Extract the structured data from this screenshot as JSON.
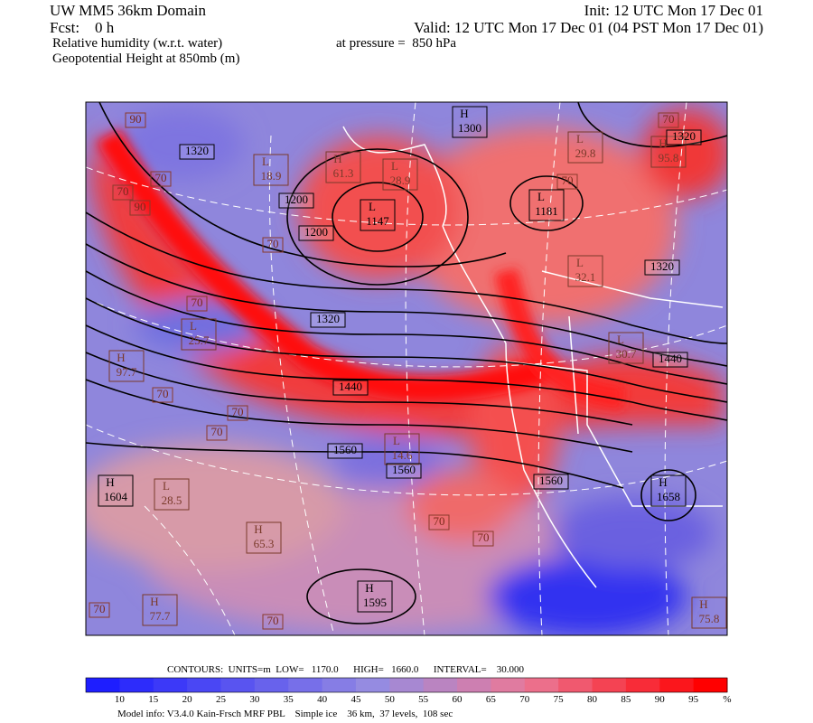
{
  "header": {
    "title": "UW MM5 36km Domain",
    "init": "Init: 12 UTC Mon 17 Dec 01",
    "fcst": "Fcst:    0 h",
    "valid": "Valid: 12 UTC Mon 17 Dec 01 (04 PST Mon 17 Dec 01)",
    "field1": "Relative humidity (w.r.t. water)",
    "pressure": "at pressure =  850 hPa",
    "field2": "Geopotential Height at 850mb (m)"
  },
  "map": {
    "centers": [
      {
        "kind": "H",
        "value": 1300
      },
      {
        "kind": "L",
        "value": 29.8
      },
      {
        "kind": "L",
        "value": 1181
      },
      {
        "kind": "H",
        "value": 61.3
      },
      {
        "kind": "L",
        "value": 28.9
      },
      {
        "kind": "L",
        "value": 1147
      },
      {
        "kind": "L",
        "value": 18.9
      },
      {
        "kind": "H",
        "value": 95.8
      },
      {
        "kind": "L",
        "value": 32.1
      },
      {
        "kind": "L",
        "value": 25.7
      },
      {
        "kind": "L",
        "value": 30.7
      },
      {
        "kind": "H",
        "value": 97.7
      },
      {
        "kind": "L",
        "value": 14.6
      },
      {
        "kind": "H",
        "value": 1604
      },
      {
        "kind": "L",
        "value": 28.5
      },
      {
        "kind": "H",
        "value": 1658
      },
      {
        "kind": "H",
        "value": 65.3
      },
      {
        "kind": "H",
        "value": 1595
      },
      {
        "kind": "H",
        "value": 77.7
      },
      {
        "kind": "H",
        "value": 75.8
      }
    ],
    "height_labels": [
      1320,
      1320,
      1200,
      1200,
      1320,
      1320,
      1440,
      1440,
      1560,
      1560,
      1560
    ],
    "rh_labels": [
      90,
      70,
      70,
      90,
      70,
      70,
      70,
      70,
      70,
      70,
      70,
      70,
      70,
      70,
      70
    ]
  },
  "footer": {
    "contours": "CONTOURS:  UNITS=m  LOW=   1170.0      HIGH=   1660.0      INTERVAL=    30.000",
    "colorbar_ticks": [
      10,
      15,
      20,
      25,
      30,
      35,
      40,
      45,
      50,
      55,
      60,
      65,
      70,
      75,
      80,
      85,
      90,
      95
    ],
    "colorbar_unit": "%",
    "model_info": "Model info: V3.4.0 Kain-Frsch MRF PBL    Simple ice    36 km,  37 levels,  108 sec"
  }
}
